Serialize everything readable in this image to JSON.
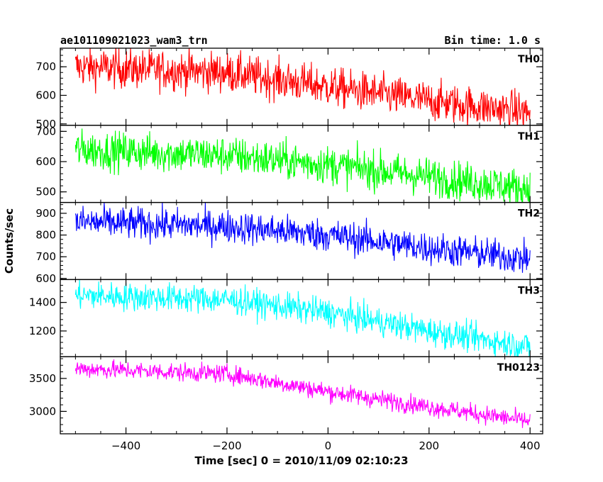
{
  "chart_data": {
    "type": "line",
    "title": "ae101109021023_wam3_trn",
    "bin_time_label": "Bin time: 1.0 s",
    "xlabel": "Time [sec] 0 = 2010/11/09 02:10:23",
    "ylabel": "Counts/sec",
    "xlim": [
      -530,
      425
    ],
    "x_ticks": [
      -400,
      -200,
      0,
      200,
      400
    ],
    "x_tick_labels": [
      "−400",
      "−200",
      "0",
      "200",
      "400"
    ],
    "x_data_range": [
      -500,
      400
    ],
    "grid": false,
    "panels": [
      {
        "name": "TH0",
        "color": "#ff0000",
        "ylim": [
          495,
          765
        ],
        "y_ticks": [
          500,
          600,
          700
        ],
        "y_tick_labels": [
          "500",
          "600",
          "700"
        ],
        "trend_x": [
          -500,
          -200,
          0,
          200,
          400
        ],
        "trend_y": [
          700,
          680,
          630,
          580,
          540
        ],
        "noise": 35
      },
      {
        "name": "TH1",
        "color": "#00ff00",
        "ylim": [
          465,
          720
        ],
        "y_ticks": [
          500,
          600,
          700
        ],
        "y_tick_labels": [
          "500",
          "600",
          "700"
        ],
        "trend_x": [
          -500,
          -200,
          0,
          200,
          400
        ],
        "trend_y": [
          640,
          620,
          590,
          550,
          510
        ],
        "noise": 32
      },
      {
        "name": "TH2",
        "color": "#0000ff",
        "ylim": [
          595,
          950
        ],
        "y_ticks": [
          600,
          700,
          800,
          900
        ],
        "y_tick_labels": [
          "600",
          "700",
          "800",
          "900"
        ],
        "trend_x": [
          -500,
          -200,
          0,
          200,
          400
        ],
        "trend_y": [
          860,
          840,
          800,
          740,
          690
        ],
        "noise": 38
      },
      {
        "name": "TH3",
        "color": "#00ffff",
        "ylim": [
          1020,
          1560
        ],
        "y_ticks": [
          1200,
          1400
        ],
        "y_tick_labels": [
          "1200",
          "1400"
        ],
        "trend_x": [
          -500,
          -200,
          0,
          200,
          400
        ],
        "trend_y": [
          1450,
          1420,
          1330,
          1200,
          1090
        ],
        "noise": 50
      },
      {
        "name": "TH0123",
        "color": "#ff00ff",
        "ylim": [
          2660,
          3830
        ],
        "y_ticks": [
          3000,
          3500
        ],
        "y_tick_labels": [
          "3000",
          "3500"
        ],
        "trend_x": [
          -500,
          -200,
          0,
          200,
          400
        ],
        "trend_y": [
          3650,
          3570,
          3300,
          3070,
          2850
        ],
        "noise": 70
      }
    ]
  }
}
